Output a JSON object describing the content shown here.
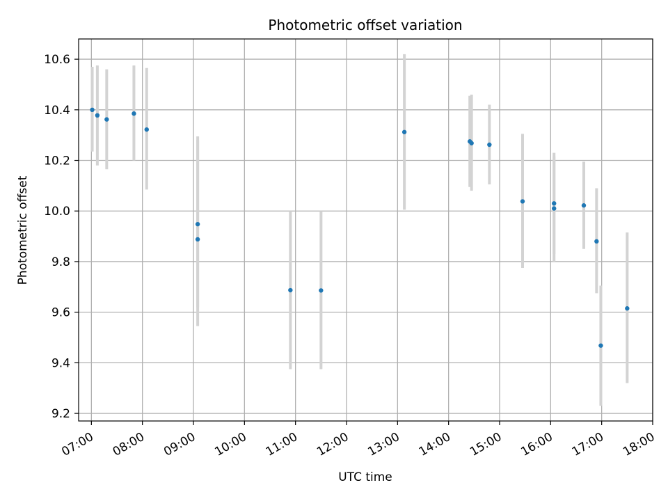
{
  "chart_data": {
    "type": "scatter",
    "title": "Photometric offset variation",
    "xlabel": "UTC time",
    "ylabel": "Photometric offset",
    "x_ticks": [
      "07:00",
      "08:00",
      "09:00",
      "10:00",
      "11:00",
      "12:00",
      "13:00",
      "14:00",
      "15:00",
      "16:00",
      "17:00",
      "18:00"
    ],
    "y_ticks": [
      "9.2",
      "9.4",
      "9.6",
      "9.8",
      "10.0",
      "10.2",
      "10.4",
      "10.6"
    ],
    "xlim": [
      "06:45",
      "18:00"
    ],
    "ylim": [
      9.17,
      10.68
    ],
    "grid": true,
    "colors": {
      "point": "#1f77b4",
      "errorbar": "#d3d3d3",
      "grid": "#b0b0b0",
      "axis": "#000000"
    },
    "points": [
      {
        "x": "07:01",
        "y": 10.4,
        "ylow": 10.235,
        "yhigh": 10.57
      },
      {
        "x": "07:07",
        "y": 10.378,
        "ylow": 10.18,
        "yhigh": 10.575
      },
      {
        "x": "07:18",
        "y": 10.362,
        "ylow": 10.165,
        "yhigh": 10.56
      },
      {
        "x": "07:50",
        "y": 10.385,
        "ylow": 10.2,
        "yhigh": 10.575
      },
      {
        "x": "08:05",
        "y": 10.322,
        "ylow": 10.085,
        "yhigh": 10.565
      },
      {
        "x": "09:05",
        "y": 9.948,
        "ylow": 9.62,
        "yhigh": 10.28
      },
      {
        "x": "09:05",
        "y": 9.888,
        "ylow": 9.545,
        "yhigh": 10.295
      },
      {
        "x": "10:54",
        "y": 9.687,
        "ylow": 9.375,
        "yhigh": 10.0
      },
      {
        "x": "11:30",
        "y": 9.686,
        "ylow": 9.375,
        "yhigh": 10.0
      },
      {
        "x": "13:08",
        "y": 10.312,
        "ylow": 10.005,
        "yhigh": 10.62
      },
      {
        "x": "14:25",
        "y": 10.275,
        "ylow": 10.095,
        "yhigh": 10.455
      },
      {
        "x": "14:27",
        "y": 10.268,
        "ylow": 10.08,
        "yhigh": 10.46
      },
      {
        "x": "14:48",
        "y": 10.262,
        "ylow": 10.105,
        "yhigh": 10.42
      },
      {
        "x": "15:27",
        "y": 10.038,
        "ylow": 9.775,
        "yhigh": 10.305
      },
      {
        "x": "16:04",
        "y": 10.03,
        "ylow": 9.8,
        "yhigh": 10.23
      },
      {
        "x": "16:04",
        "y": 10.01,
        "ylow": 9.83,
        "yhigh": 10.215
      },
      {
        "x": "16:39",
        "y": 10.022,
        "ylow": 9.85,
        "yhigh": 10.195
      },
      {
        "x": "16:54",
        "y": 9.88,
        "ylow": 9.675,
        "yhigh": 10.09
      },
      {
        "x": "16:59",
        "y": 9.468,
        "ylow": 9.23,
        "yhigh": 9.705
      },
      {
        "x": "17:30",
        "y": 9.615,
        "ylow": 9.32,
        "yhigh": 9.915
      }
    ]
  }
}
